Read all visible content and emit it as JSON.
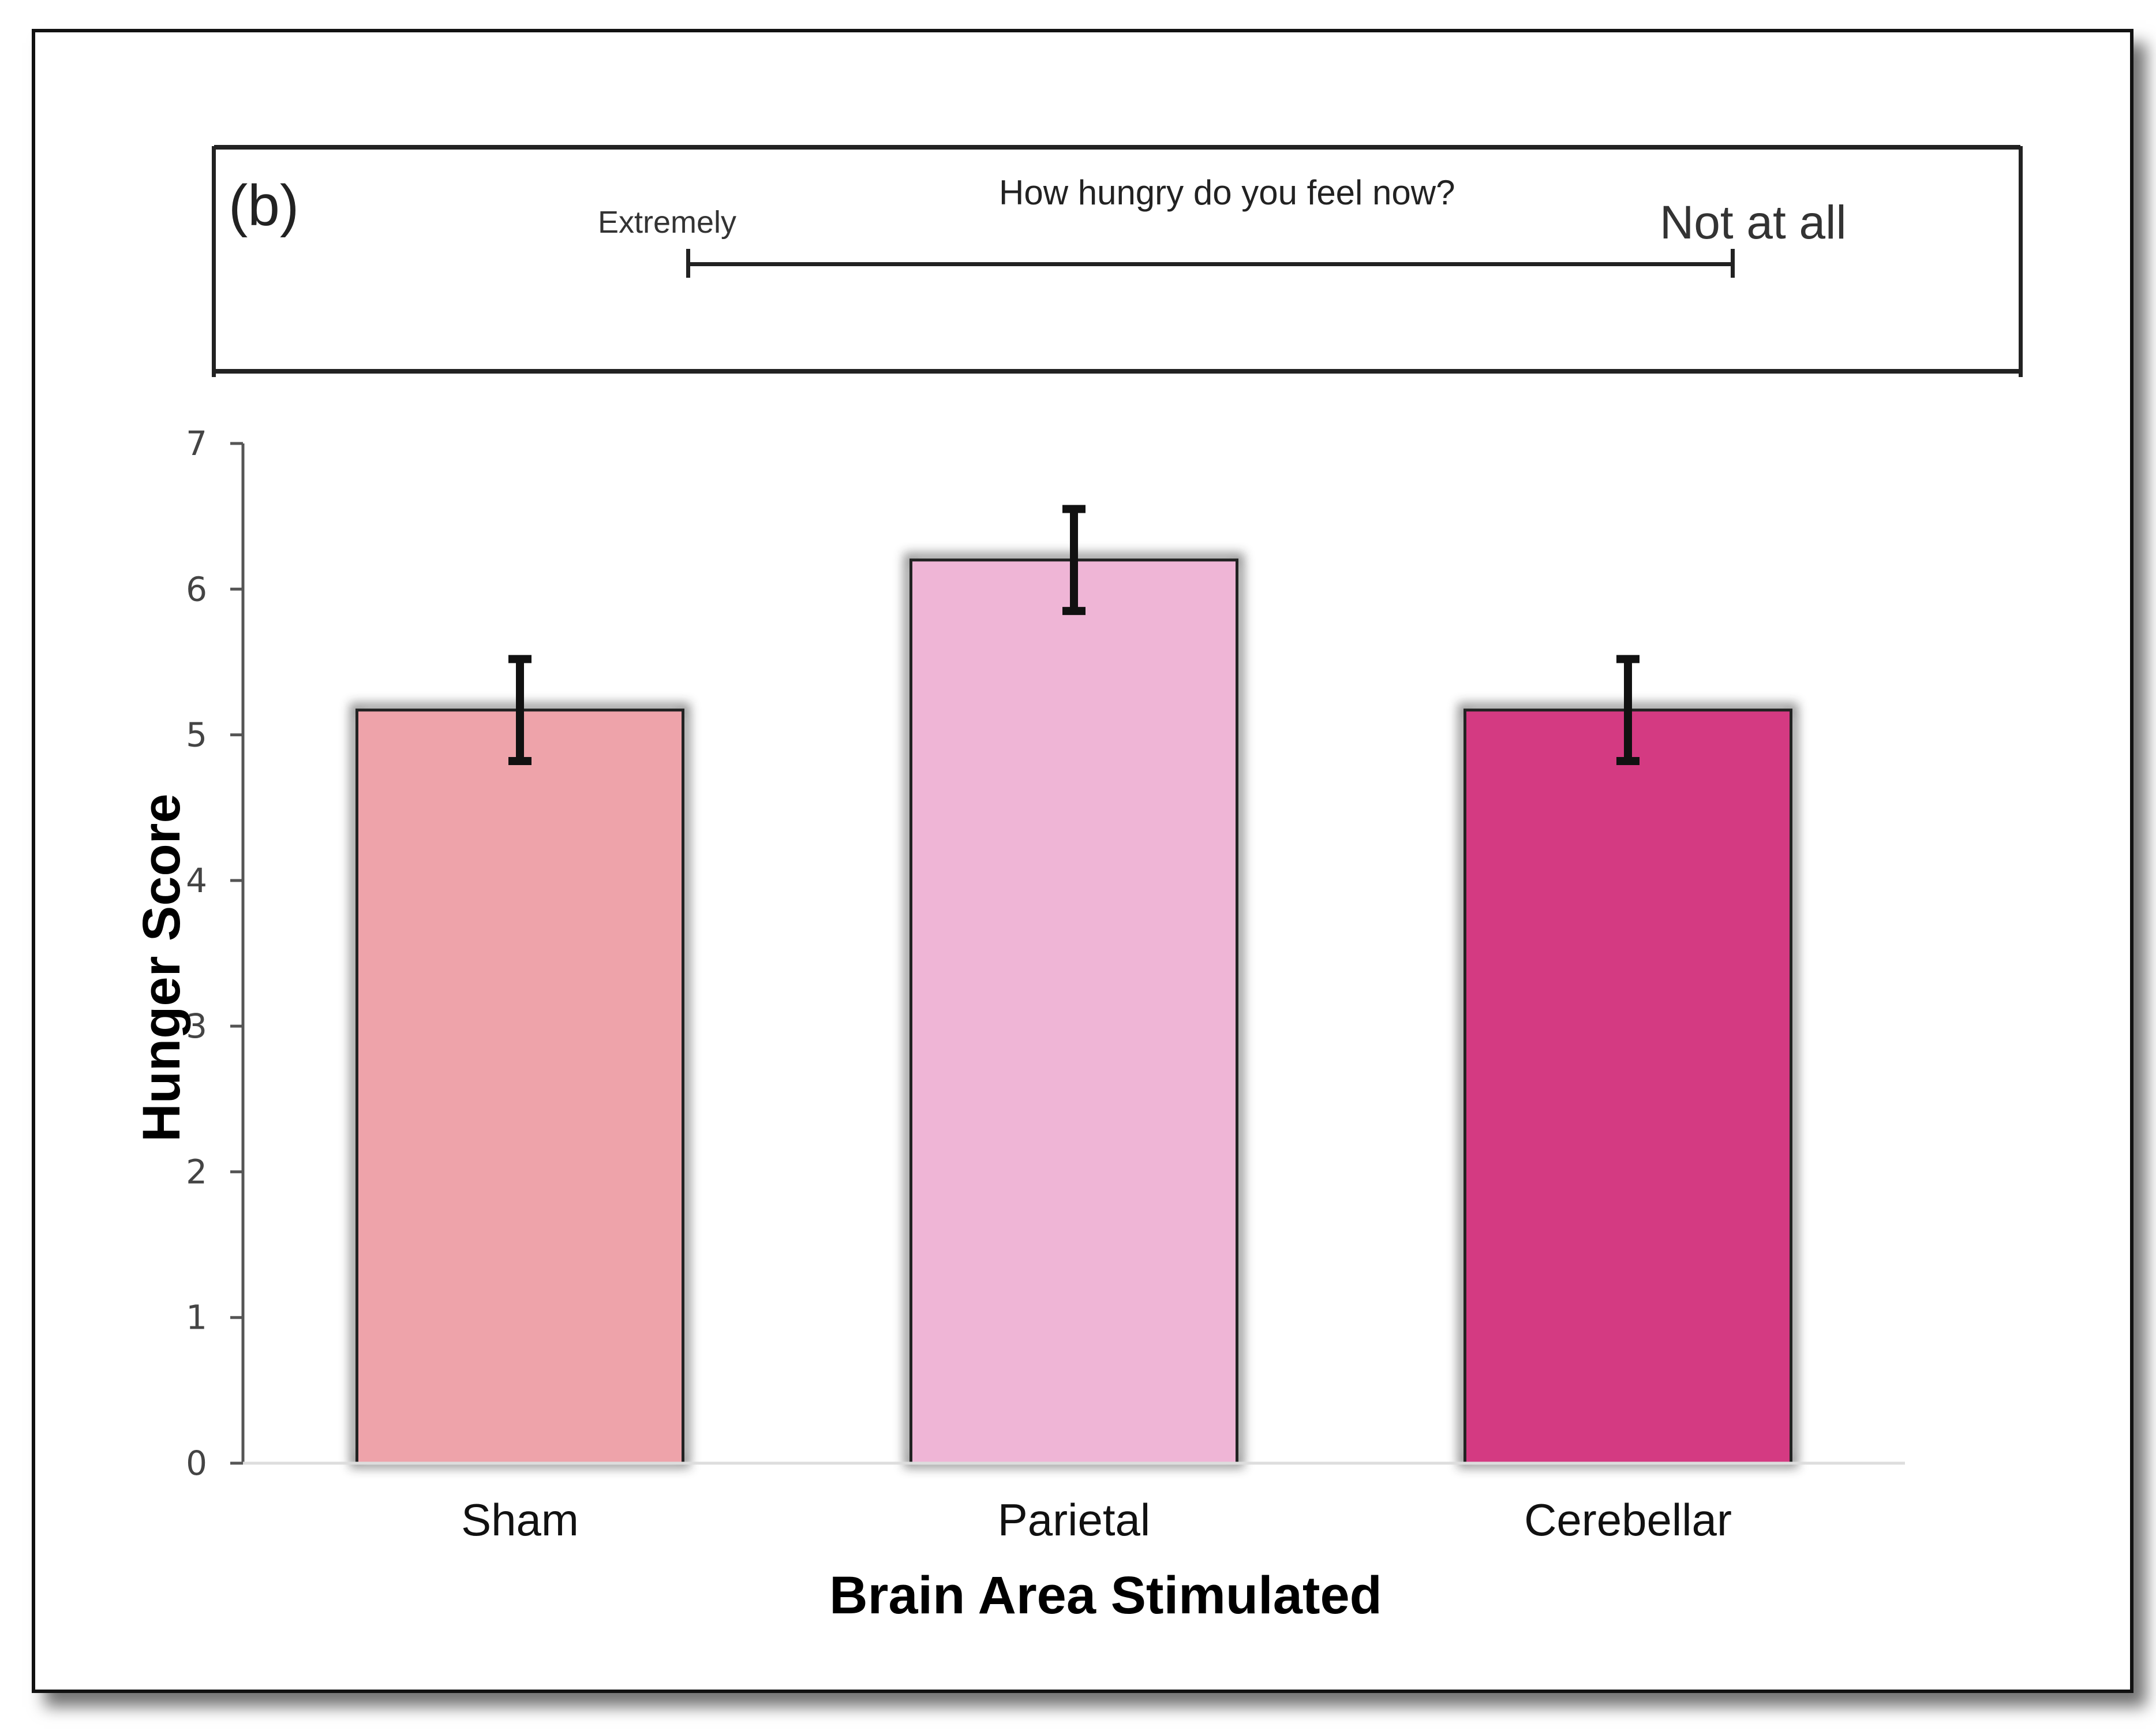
{
  "panel": {
    "label": "(b)",
    "question": "How hungry do you feel now?",
    "anchor_left": "Extremely",
    "anchor_right": "Not at all"
  },
  "chart_data": {
    "type": "bar",
    "title": "",
    "categories": [
      "Sham",
      "Parietal",
      "Cerebellar"
    ],
    "values": [
      5.17,
      6.2,
      5.17
    ],
    "error": [
      0.35,
      0.35,
      0.35
    ],
    "colors": [
      "#eea3aa",
      "#efb5d6",
      "#d43a82"
    ],
    "xlabel": "Brain Area Stimulated",
    "ylabel": "Hunger Score",
    "ylim": [
      0,
      7
    ],
    "yticks": [
      0,
      1,
      2,
      3,
      4,
      5,
      6,
      7
    ],
    "grid": false,
    "legend": "none"
  }
}
